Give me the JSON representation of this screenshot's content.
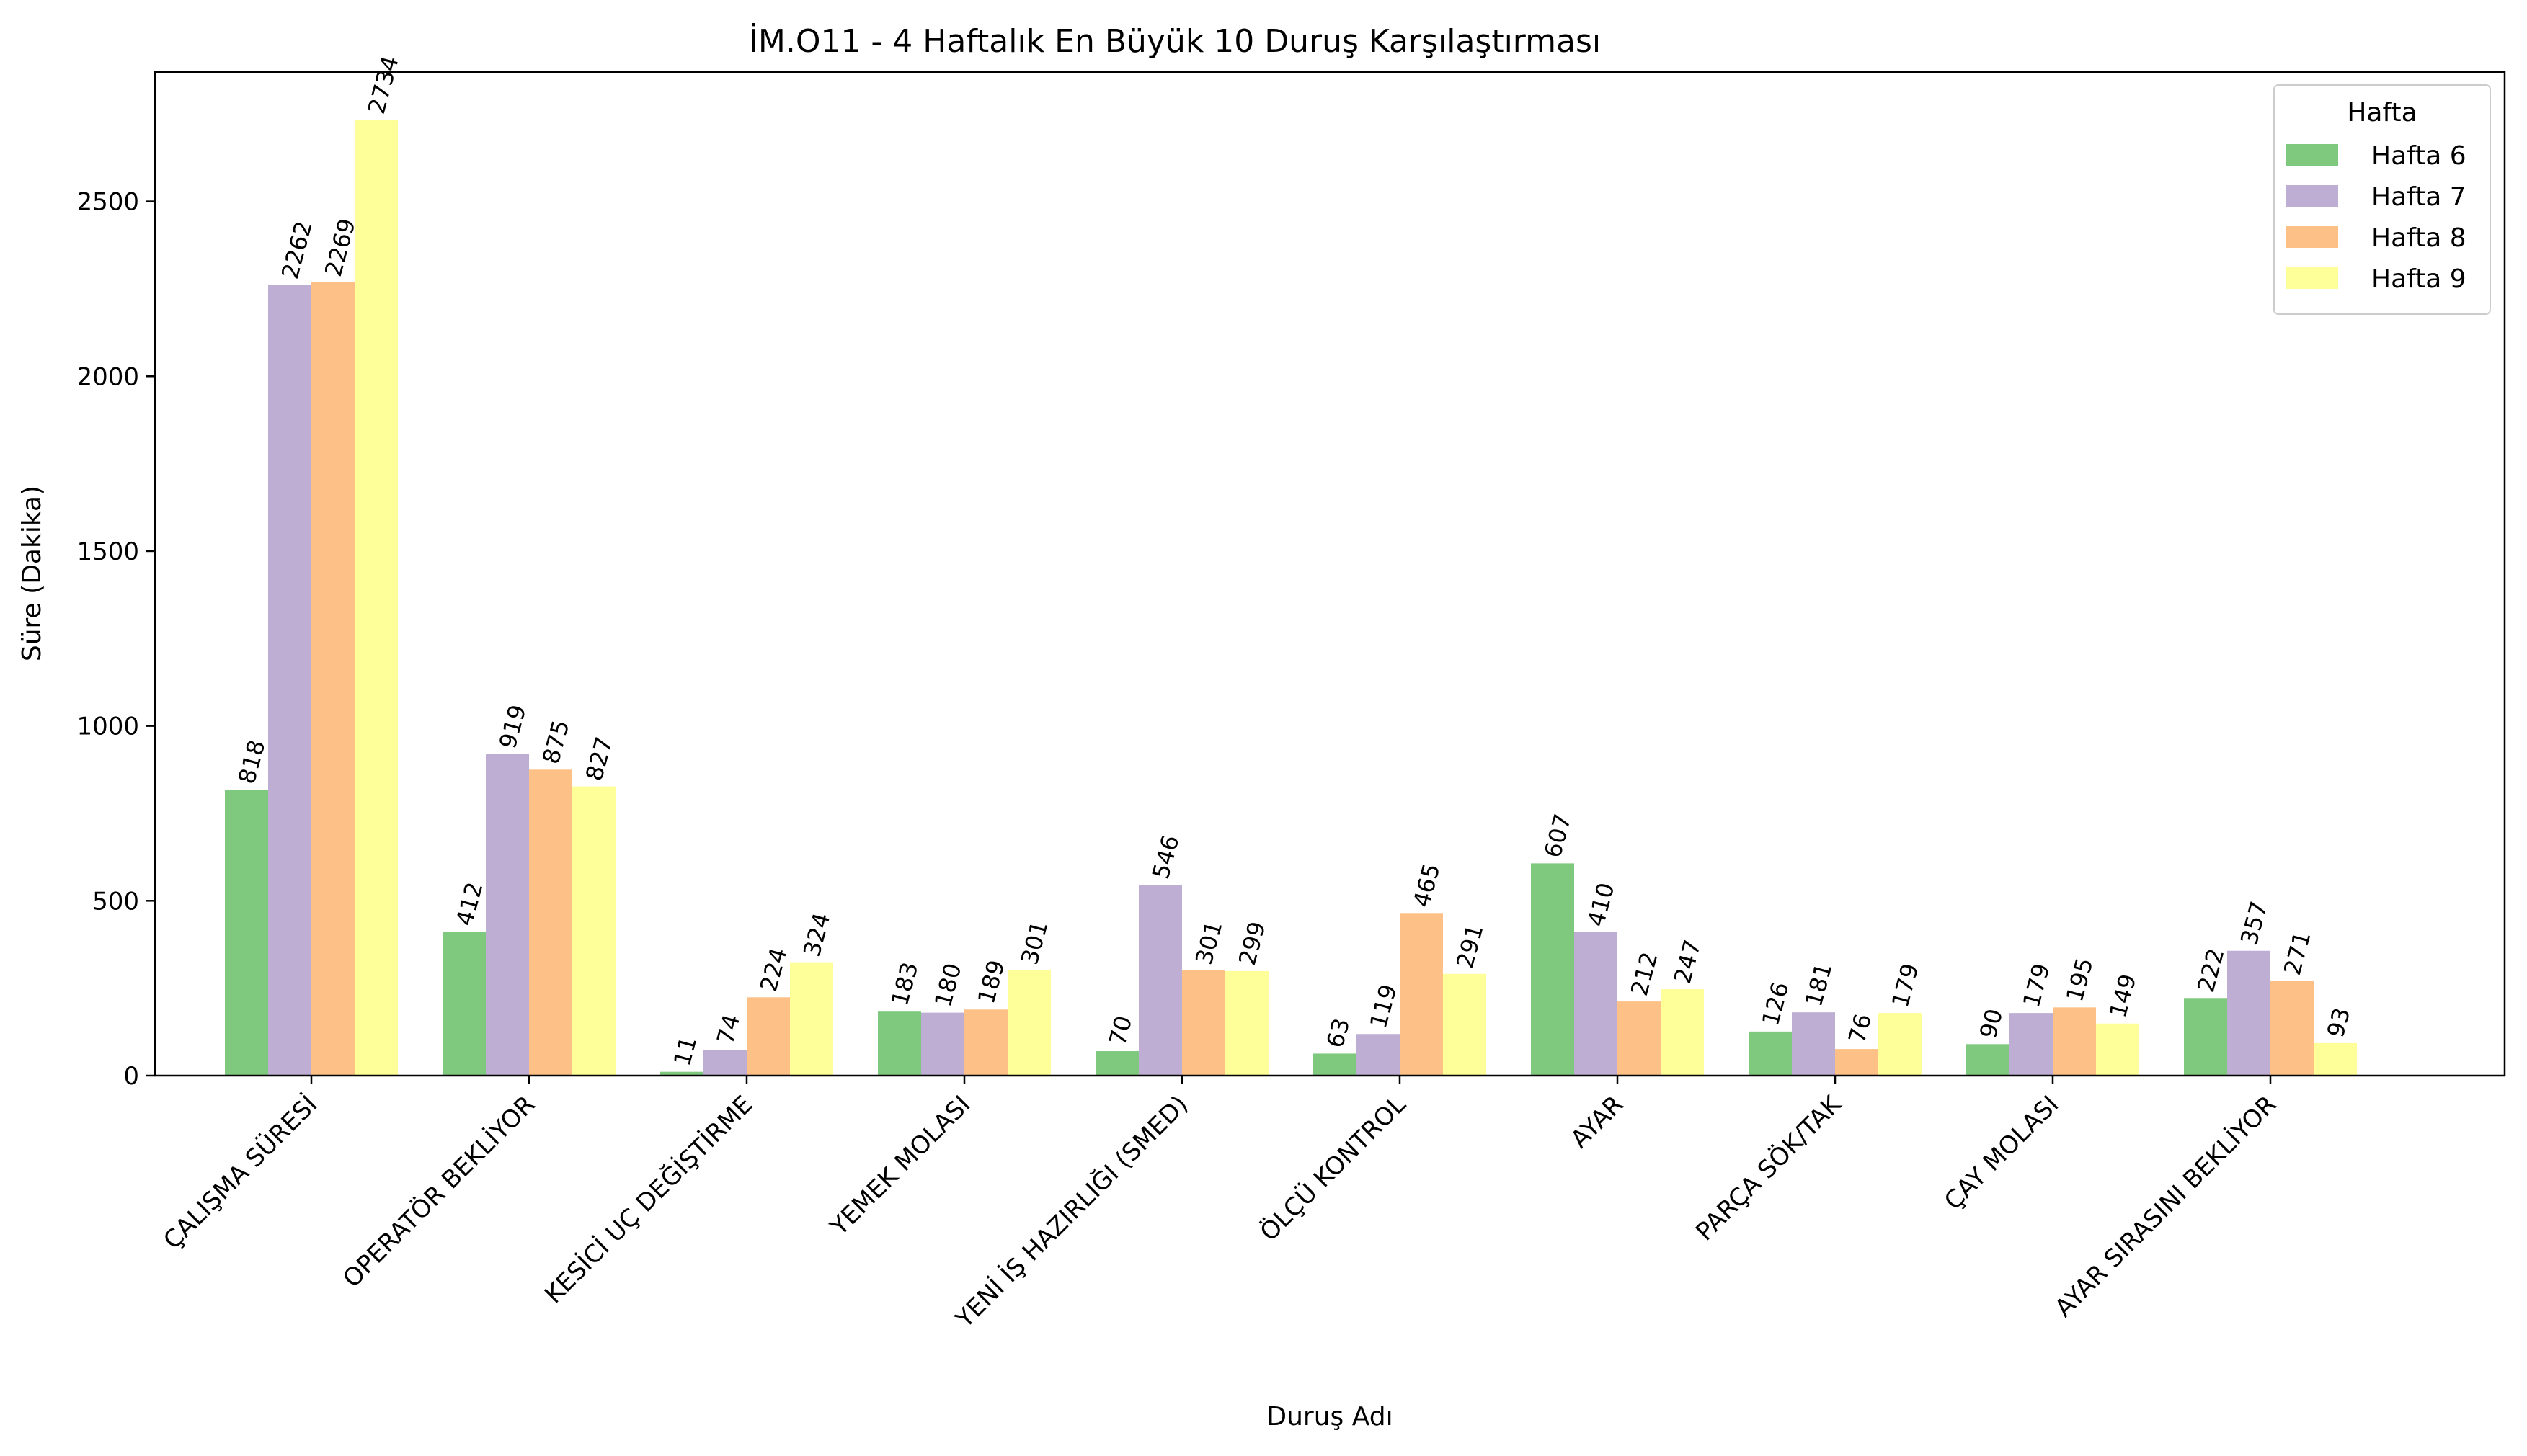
{
  "chart_data": {
    "type": "bar",
    "title": "İM.O11 - 4 Haftalık En Büyük 10 Duruş Karşılaştırması",
    "xlabel": "Duruş Adı",
    "ylabel": "Süre (Dakika)",
    "ylim": [
      0,
      2870
    ],
    "yticks": [
      0,
      500,
      1000,
      1500,
      2000,
      2500
    ],
    "grid": false,
    "legend": {
      "title": "Hafta",
      "placement": "top-right"
    },
    "categories": [
      "ÇALIŞMA SÜRESİ",
      "OPERATÖR BEKLİYOR",
      "KESİCİ UÇ DEĞİŞTİRME",
      "YEMEK MOLASI",
      "YENİ İŞ HAZIRLIĞI (SMED)",
      "ÖLÇÜ KONTROL",
      "AYAR",
      "PARÇA SÖK/TAK",
      "ÇAY MOLASI",
      "AYAR SIRASINI BEKLİYOR"
    ],
    "series": [
      {
        "name": "Hafta 6",
        "color": "#7fc97f",
        "values": [
          818,
          412,
          11,
          183,
          70,
          63,
          607,
          126,
          90,
          222
        ]
      },
      {
        "name": "Hafta 7",
        "color": "#beaed4",
        "values": [
          2262,
          919,
          74,
          180,
          546,
          119,
          410,
          181,
          179,
          357
        ]
      },
      {
        "name": "Hafta 8",
        "color": "#fdc086",
        "values": [
          2269,
          875,
          224,
          189,
          301,
          465,
          212,
          76,
          195,
          271
        ]
      },
      {
        "name": "Hafta 9",
        "color": "#ffff99",
        "values": [
          2734,
          827,
          324,
          301,
          299,
          291,
          247,
          179,
          149,
          93
        ]
      }
    ]
  }
}
